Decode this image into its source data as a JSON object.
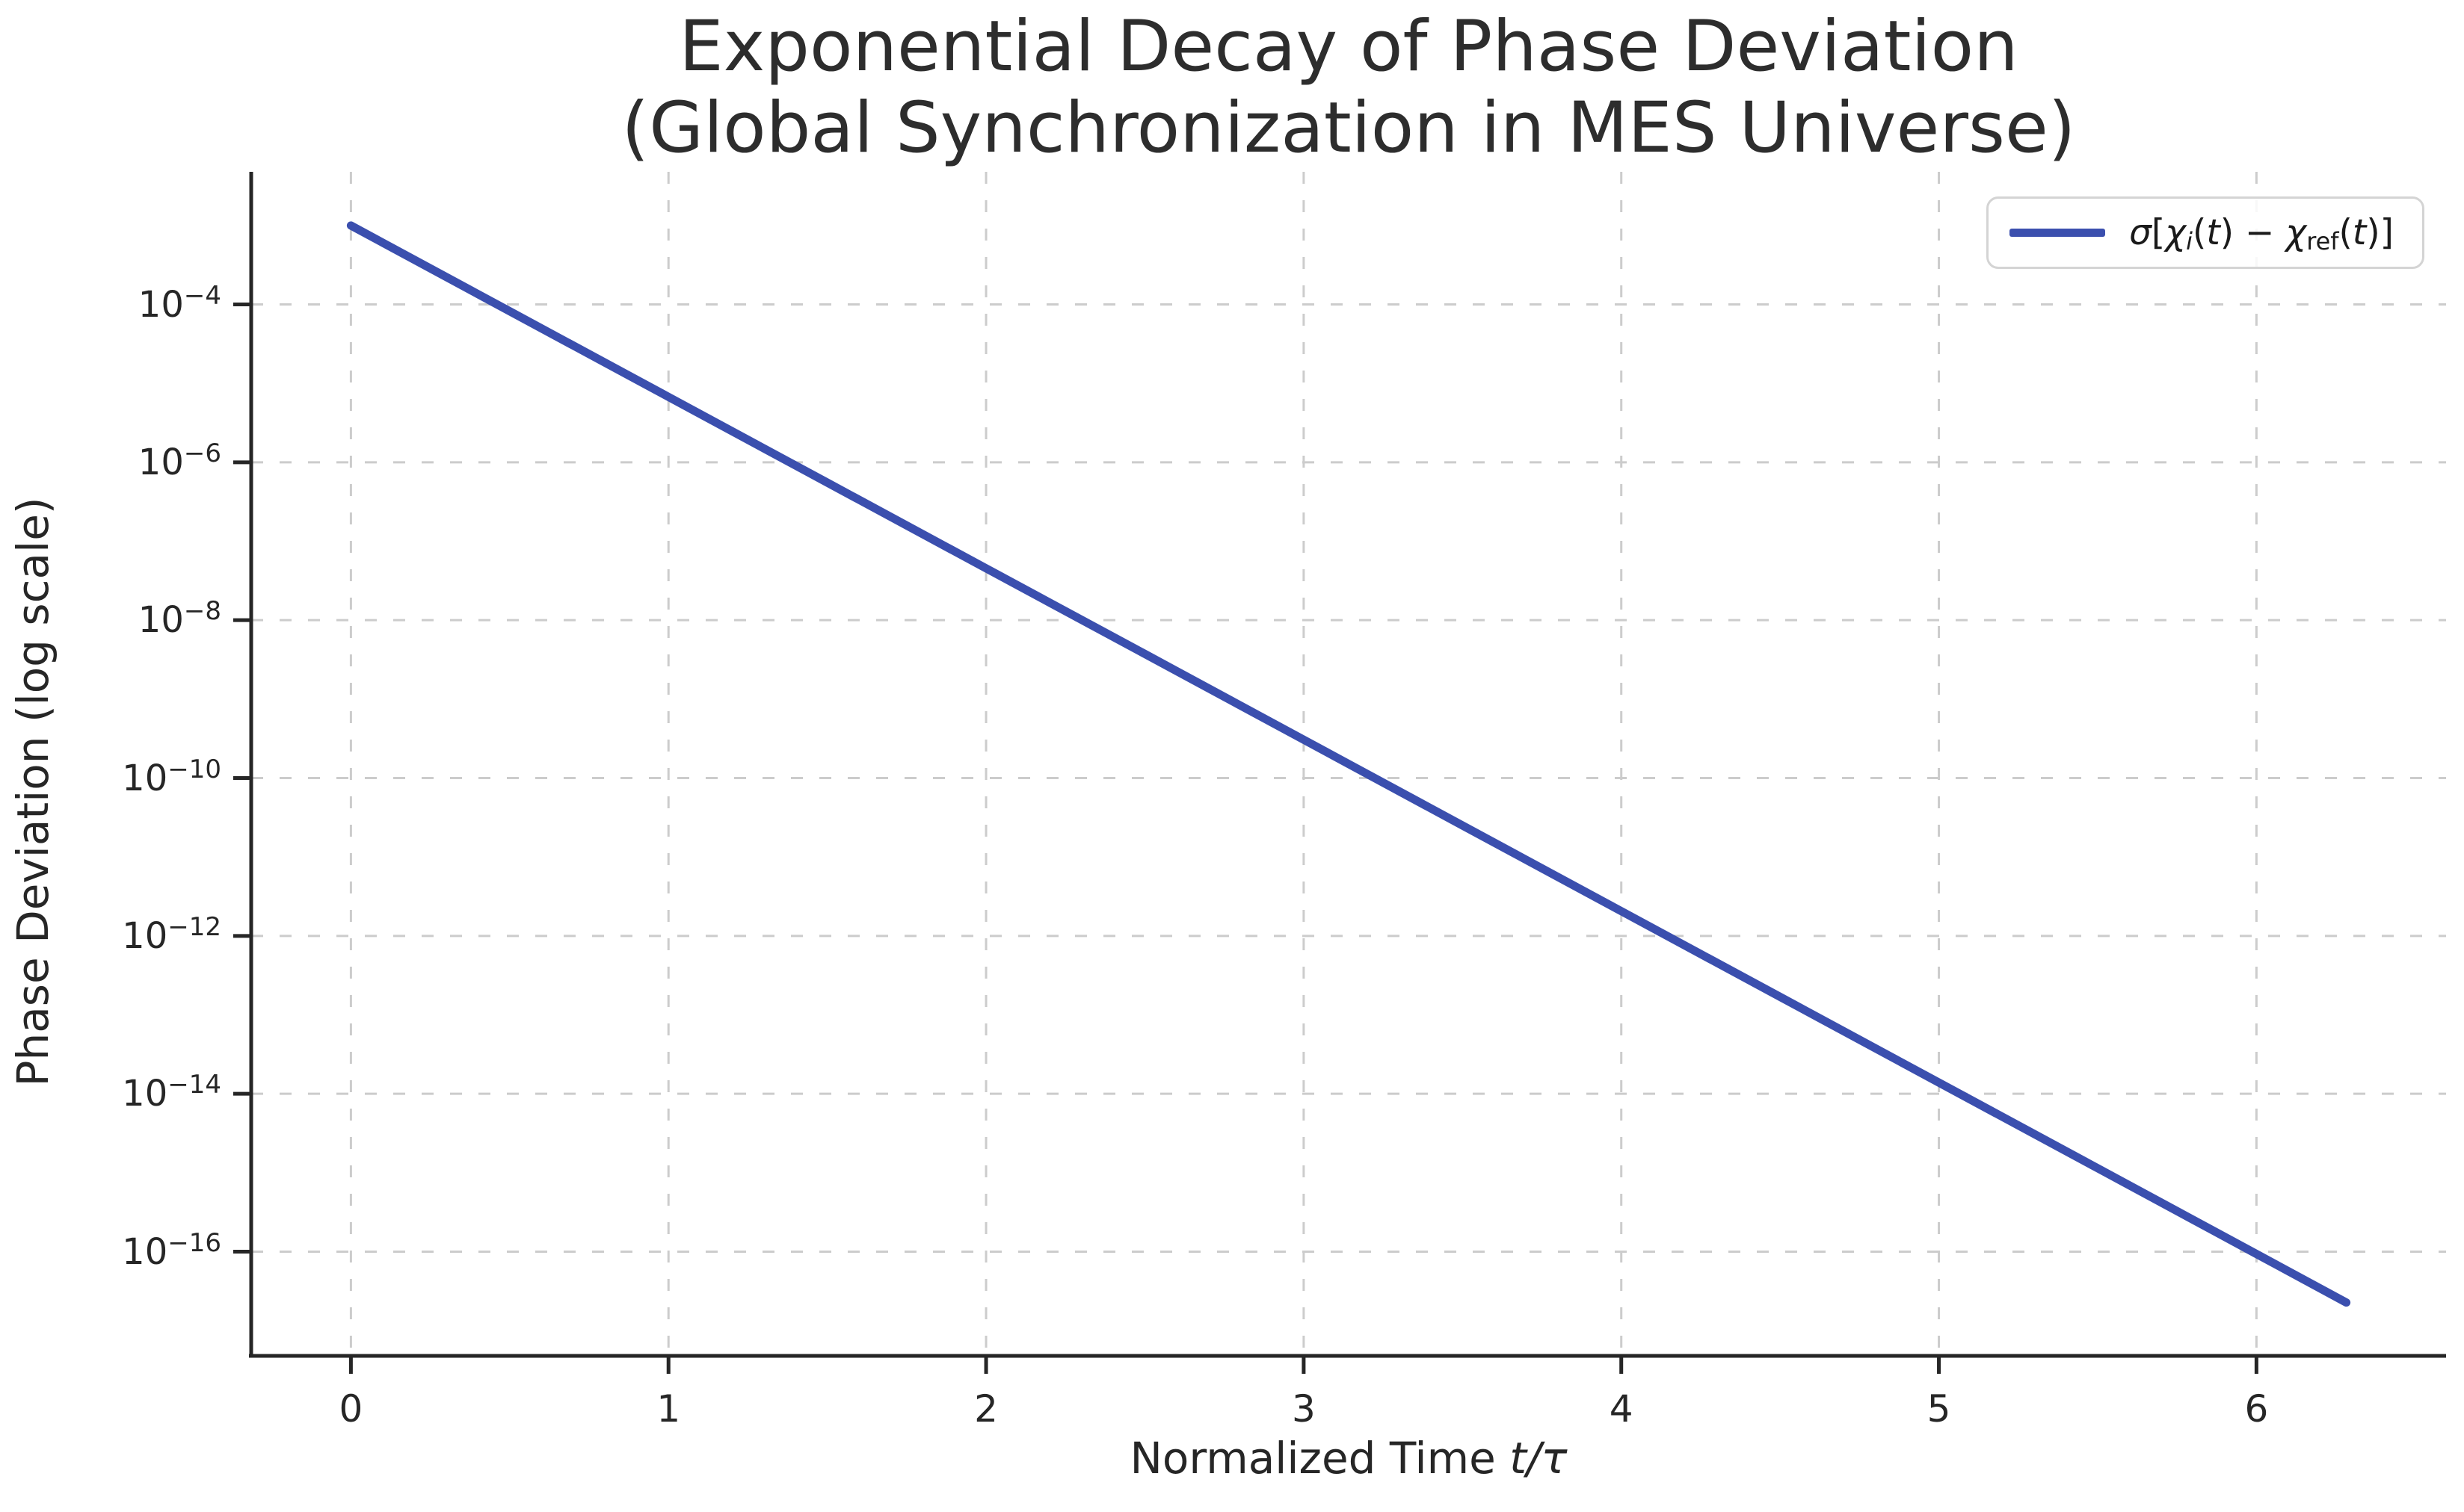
{
  "figure": {
    "background": "#ffffff"
  },
  "chart_data": {
    "type": "line",
    "title_line1": "Exponential Decay of Phase Deviation",
    "title_line2": "(Global Synchronization in MES Universe)",
    "xlabel_parts": [
      {
        "text": "Normalized Time ",
        "italic": false
      },
      {
        "text": "t/τ",
        "italic": true
      }
    ],
    "ylabel": "Phase Deviation (log scale)",
    "x_ticks": [
      0,
      1,
      2,
      3,
      4,
      5,
      6
    ],
    "y_tick_exponents": [
      -4,
      -6,
      -8,
      -10,
      -12,
      -14,
      -16
    ],
    "xlim": [
      -0.314,
      6.597
    ],
    "ylim_log10": [
      -17.32,
      -2.32
    ],
    "grid": {
      "show": true,
      "style": "dashed",
      "color": "#cccccc"
    },
    "axis_color": "#262626",
    "legend": {
      "position": "upper right",
      "label_plain": "σ[χi(t) − χref(t)]",
      "label_parts": [
        {
          "text": "σ",
          "italic": true
        },
        {
          "text": "[",
          "italic": false
        },
        {
          "text": "χ",
          "italic": true
        },
        {
          "text": "i",
          "italic": true,
          "sub": true
        },
        {
          "text": "(",
          "italic": false
        },
        {
          "text": "t",
          "italic": true
        },
        {
          "text": ")",
          "italic": false
        },
        {
          "text": " − ",
          "italic": false
        },
        {
          "text": "χ",
          "italic": true
        },
        {
          "text": "ref",
          "italic": false,
          "sub": true
        },
        {
          "text": "(",
          "italic": false
        },
        {
          "text": "t",
          "italic": true
        },
        {
          "text": ")",
          "italic": false
        },
        {
          "text": "]",
          "italic": false
        }
      ],
      "line_color": "#3b4fae"
    },
    "series": [
      {
        "name": "σ[χi(t) − χref(t)]",
        "color": "#3b4fae",
        "x": [
          0,
          0.5,
          1.0,
          1.5,
          2.0,
          2.5,
          3.0,
          3.5,
          4.0,
          4.5,
          5.0,
          5.5,
          6.0,
          6.283
        ],
        "y": [
          0.001,
          8.21e-05,
          6.74e-06,
          5.53e-07,
          4.54e-08,
          3.73e-09,
          3.06e-10,
          2.51e-11,
          2.06e-12,
          1.69e-13,
          1.39e-14,
          1.14e-15,
          9.36e-17,
          2.27e-17
        ]
      }
    ]
  }
}
